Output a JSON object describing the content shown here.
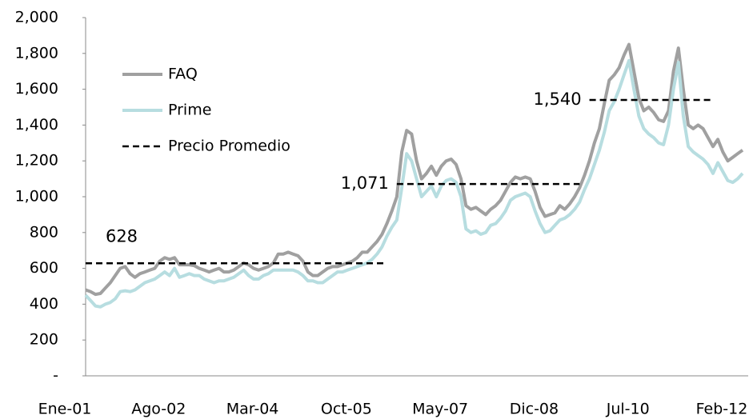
{
  "chart_data": {
    "type": "line",
    "categories": [
      "Ene-01",
      null,
      null,
      null,
      null,
      null,
      null,
      null,
      null,
      null,
      null,
      null,
      null,
      null,
      null,
      null,
      null,
      null,
      null,
      "Ago-02",
      null,
      null,
      null,
      null,
      null,
      null,
      null,
      null,
      null,
      null,
      null,
      null,
      null,
      null,
      null,
      null,
      null,
      null,
      "Mar-04",
      null,
      null,
      null,
      null,
      null,
      null,
      null,
      null,
      null,
      null,
      null,
      null,
      null,
      null,
      null,
      null,
      null,
      null,
      "Oct-05",
      null,
      null,
      null,
      null,
      null,
      null,
      null,
      null,
      null,
      null,
      null,
      null,
      null,
      null,
      null,
      null,
      null,
      null,
      "May-07",
      null,
      null,
      null,
      null,
      null,
      null,
      null,
      null,
      null,
      null,
      null,
      null,
      null,
      null,
      null,
      null,
      null,
      null,
      "Dic-08",
      null,
      null,
      null,
      null,
      null,
      null,
      null,
      null,
      null,
      null,
      null,
      null,
      null,
      null,
      null,
      null,
      null,
      null,
      "Jul-10",
      null,
      null,
      null,
      null,
      null,
      null,
      null,
      null,
      null,
      null,
      null,
      null,
      null,
      null,
      null,
      null,
      null,
      null,
      "Feb-12"
    ],
    "series": [
      {
        "name": "FAQ",
        "color": "#a0a0a0",
        "values": [
          480,
          470,
          455,
          460,
          490,
          520,
          560,
          600,
          610,
          570,
          550,
          570,
          580,
          590,
          600,
          640,
          660,
          650,
          660,
          620,
          620,
          620,
          615,
          600,
          590,
          580,
          590,
          600,
          580,
          580,
          590,
          610,
          630,
          620,
          600,
          590,
          600,
          610,
          630,
          680,
          680,
          690,
          680,
          670,
          640,
          580,
          560,
          560,
          580,
          600,
          610,
          610,
          620,
          630,
          640,
          660,
          690,
          690,
          720,
          750,
          790,
          850,
          920,
          1000,
          1250,
          1370,
          1350,
          1200,
          1100,
          1130,
          1170,
          1120,
          1170,
          1200,
          1210,
          1180,
          1100,
          950,
          930,
          940,
          920,
          900,
          930,
          950,
          980,
          1030,
          1080,
          1110,
          1100,
          1110,
          1100,
          1030,
          940,
          890,
          900,
          910,
          950,
          930,
          960,
          1000,
          1050,
          1120,
          1200,
          1300,
          1380,
          1520,
          1650,
          1680,
          1720,
          1790,
          1850,
          1700,
          1550,
          1480,
          1500,
          1470,
          1430,
          1420,
          1480,
          1700,
          1830,
          1600,
          1400,
          1380,
          1400,
          1380,
          1330,
          1280,
          1320,
          1250,
          1200,
          1220,
          1240,
          1260
        ]
      },
      {
        "name": "Prime",
        "color": "#b7dde0",
        "values": [
          450,
          420,
          390,
          385,
          400,
          410,
          430,
          470,
          475,
          470,
          480,
          500,
          520,
          530,
          540,
          560,
          580,
          560,
          600,
          550,
          560,
          570,
          560,
          560,
          540,
          530,
          520,
          530,
          530,
          540,
          550,
          570,
          590,
          560,
          540,
          540,
          560,
          570,
          590,
          590,
          590,
          590,
          590,
          580,
          560,
          530,
          530,
          520,
          520,
          540,
          560,
          580,
          580,
          590,
          600,
          610,
          620,
          630,
          650,
          680,
          720,
          780,
          830,
          870,
          1050,
          1240,
          1200,
          1100,
          1000,
          1030,
          1060,
          1000,
          1060,
          1090,
          1100,
          1080,
          1000,
          820,
          800,
          810,
          790,
          800,
          840,
          850,
          880,
          920,
          980,
          1000,
          1010,
          1020,
          1000,
          920,
          850,
          800,
          810,
          840,
          870,
          880,
          900,
          930,
          970,
          1040,
          1100,
          1180,
          1260,
          1360,
          1480,
          1530,
          1600,
          1680,
          1760,
          1600,
          1450,
          1380,
          1350,
          1330,
          1300,
          1290,
          1400,
          1600,
          1750,
          1450,
          1280,
          1250,
          1230,
          1210,
          1180,
          1130,
          1190,
          1140,
          1090,
          1080,
          1100,
          1130
        ]
      },
      {
        "name": "Precio Promedio",
        "color": "#000000",
        "dashed": true,
        "values": [
          628,
          628,
          628,
          628,
          628,
          628,
          628,
          628,
          628,
          628,
          628,
          628,
          628,
          628,
          628,
          628,
          628,
          628,
          628,
          628,
          628,
          628,
          628,
          628,
          628,
          628,
          628,
          628,
          628,
          628,
          628,
          628,
          628,
          628,
          628,
          628,
          628,
          628,
          628,
          628,
          628,
          628,
          628,
          628,
          628,
          628,
          628,
          628,
          628,
          628,
          628,
          628,
          628,
          628,
          628,
          628,
          628,
          628,
          628,
          628,
          628,
          628,
          null,
          1071,
          1071,
          1071,
          1071,
          1071,
          1071,
          1071,
          1071,
          1071,
          1071,
          1071,
          1071,
          1071,
          1071,
          1071,
          1071,
          1071,
          1071,
          1071,
          1071,
          1071,
          1071,
          1071,
          1071,
          1071,
          1071,
          1071,
          1071,
          1071,
          1071,
          1071,
          1071,
          1071,
          1071,
          1071,
          1071,
          1071,
          1071,
          null,
          1540,
          1540,
          1540,
          1540,
          1540,
          1540,
          1540,
          1540,
          1540,
          1540,
          1540,
          1540,
          1540,
          1540,
          1540,
          1540,
          1540,
          1540,
          1540,
          1540,
          1540,
          1540,
          1540,
          1540,
          1540,
          1540,
          null,
          null,
          null,
          null,
          null,
          null
        ]
      }
    ],
    "annotations": [
      "628",
      "1,071",
      "1,540"
    ],
    "ylim": [
      0,
      2000
    ],
    "yticks": [
      {
        "value": 0,
        "label": "-"
      },
      200,
      400,
      600,
      800,
      {
        "value": 1000,
        "label": "1,000"
      },
      {
        "value": 1200,
        "label": "1,200"
      },
      {
        "value": 1400,
        "label": "1,400"
      },
      {
        "value": 1600,
        "label": "1,600"
      },
      {
        "value": 1800,
        "label": "1,800"
      },
      {
        "value": 2000,
        "label": "2,000"
      }
    ],
    "legend": "upper left"
  }
}
